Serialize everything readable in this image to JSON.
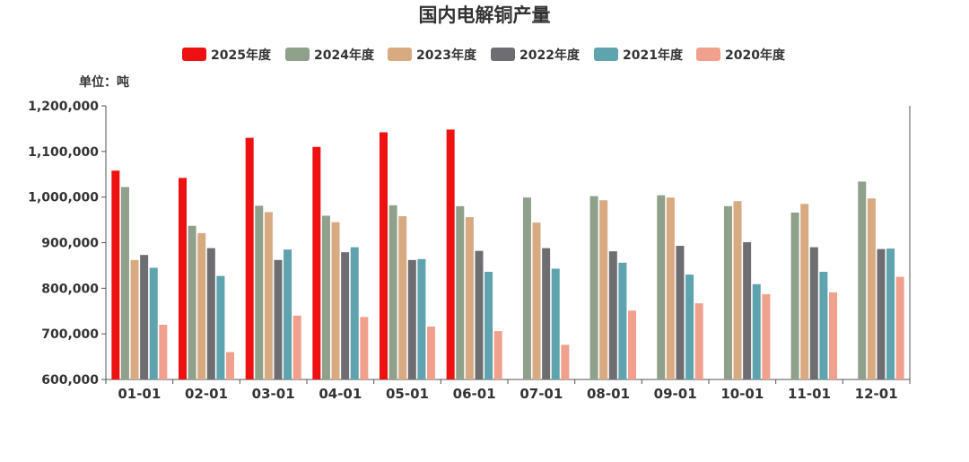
{
  "chart_data": {
    "type": "bar",
    "title": "国内电解铜产量",
    "unit_label": "单位：吨",
    "categories": [
      "01-01",
      "02-01",
      "03-01",
      "04-01",
      "05-01",
      "06-01",
      "07-01",
      "08-01",
      "09-01",
      "10-01",
      "11-01",
      "12-01"
    ],
    "ylim": [
      600000,
      1200000
    ],
    "yticks": [
      600000,
      700000,
      800000,
      900000,
      1000000,
      1100000,
      1200000
    ],
    "ytick_labels": [
      "600,000",
      "700,000",
      "800,000",
      "900,000",
      "1,000,000",
      "1,100,000",
      "1,200,000"
    ],
    "grid": false,
    "legend_position": "top-center",
    "series": [
      {
        "name": "2025年度",
        "color": "#ee1111",
        "values": [
          1058000,
          1042000,
          1130000,
          1110000,
          1142000,
          1148000,
          null,
          null,
          null,
          null,
          null,
          null
        ]
      },
      {
        "name": "2024年度",
        "color": "#8fa08b",
        "values": [
          1022000,
          937000,
          981000,
          959000,
          982000,
          980000,
          999000,
          1002000,
          1004000,
          980000,
          966000,
          1034000
        ]
      },
      {
        "name": "2023年度",
        "color": "#d8aa82",
        "values": [
          862000,
          921000,
          967000,
          945000,
          958000,
          956000,
          944000,
          993000,
          999000,
          991000,
          985000,
          997000
        ]
      },
      {
        "name": "2022年度",
        "color": "#6e6e72",
        "values": [
          873000,
          888000,
          862000,
          879000,
          862000,
          882000,
          888000,
          881000,
          893000,
          901000,
          890000,
          886000
        ]
      },
      {
        "name": "2021年度",
        "color": "#5ea3ae",
        "values": [
          845000,
          827000,
          885000,
          890000,
          864000,
          836000,
          843000,
          856000,
          830000,
          809000,
          836000,
          887000
        ]
      },
      {
        "name": "2020年度",
        "color": "#f0a08c",
        "values": [
          720000,
          660000,
          740000,
          737000,
          716000,
          706000,
          676000,
          751000,
          767000,
          787000,
          791000,
          825000
        ]
      }
    ]
  }
}
